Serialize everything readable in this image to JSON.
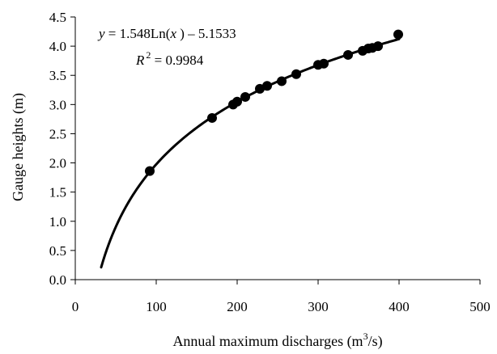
{
  "chart_data": {
    "type": "scatter",
    "title": "",
    "xlabel_prefix": "Annual maximum discharges (m",
    "xlabel_sup": "3",
    "xlabel_suffix": "/s)",
    "ylabel": "Gauge heights (m)",
    "xlim": [
      0,
      500
    ],
    "ylim": [
      0.0,
      4.5
    ],
    "x_ticks": [
      0,
      100,
      200,
      300,
      400,
      500
    ],
    "x_tick_labels": [
      "0",
      "100",
      "200",
      "300",
      "400",
      "500"
    ],
    "y_ticks": [
      0.0,
      0.5,
      1.0,
      1.5,
      2.0,
      2.5,
      3.0,
      3.5,
      4.0,
      4.5
    ],
    "y_tick_labels": [
      "0.0",
      "0.5",
      "1.0",
      "1.5",
      "2.0",
      "2.5",
      "3.0",
      "3.5",
      "4.0",
      "4.5"
    ],
    "grid": false,
    "legend": "none",
    "points": [
      {
        "x": 92,
        "y": 1.86
      },
      {
        "x": 169,
        "y": 2.77
      },
      {
        "x": 195,
        "y": 3.0
      },
      {
        "x": 200,
        "y": 3.05
      },
      {
        "x": 210,
        "y": 3.13
      },
      {
        "x": 228,
        "y": 3.27
      },
      {
        "x": 237,
        "y": 3.32
      },
      {
        "x": 255,
        "y": 3.4
      },
      {
        "x": 273,
        "y": 3.52
      },
      {
        "x": 300,
        "y": 3.68
      },
      {
        "x": 307,
        "y": 3.7
      },
      {
        "x": 337,
        "y": 3.85
      },
      {
        "x": 355,
        "y": 3.92
      },
      {
        "x": 362,
        "y": 3.96
      },
      {
        "x": 367,
        "y": 3.97
      },
      {
        "x": 374,
        "y": 4.0
      },
      {
        "x": 399,
        "y": 4.2
      }
    ],
    "trendline": {
      "a": 1.548,
      "b": -5.1533,
      "x_range": [
        32,
        400
      ]
    },
    "equation": {
      "y_var": "y",
      "rhs_prefix": " = 1.548Ln(",
      "x_var": "x",
      "rhs_suffix": " ) – 5.1533",
      "r_label": "R",
      "r_sup": "2",
      "r_value": " = 0.9984"
    },
    "marker_color": "#000000",
    "line_color": "#000000"
  }
}
